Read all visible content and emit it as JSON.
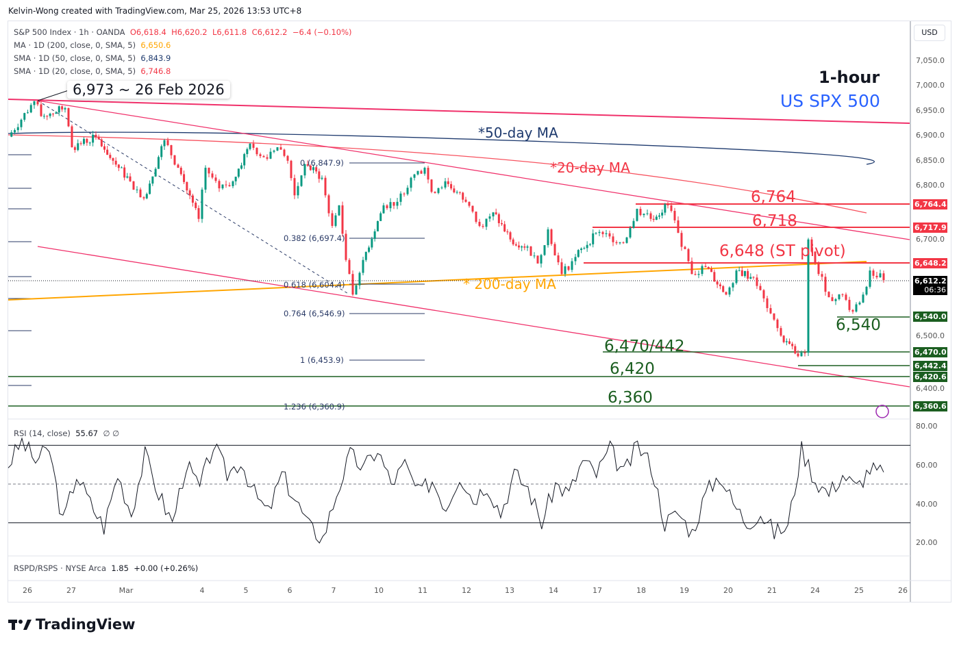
{
  "header": "Kelvin-Wong created with TradingView.com, Mar 25, 2026 13:53 UTC+8",
  "legend": {
    "symbol": "S&P 500 Index · 1h · OANDA",
    "o": "O6,618.4",
    "h": "H6,620.2",
    "l": "L6,611.8",
    "c": "C6,612.2",
    "chg": "−6.4 (−0.10%)",
    "ma200": "MA · 1D (200, close, 0, SMA, 5)",
    "ma200_val": "6,650.6",
    "sma50": "SMA · 1D (50, close, 0, SMA, 5)",
    "sma50_val": "6,843.9",
    "sma20": "SMA · 1D (20, close, 0, SMA, 5)",
    "sma20_val": "6,746.8"
  },
  "callout": "6,973 ~ 26 Feb 2026",
  "titles": {
    "timeframe": "1-hour",
    "instrument": "US SPX 500"
  },
  "annotations": {
    "ma50": "*50-day MA",
    "ma20": "*20-day MA",
    "ma200": "* 200-day MA",
    "r1": "6,764",
    "r2": "6,718",
    "pivot": "6,648 (ST pivot)",
    "s1": "6,540",
    "s2": "6,470/442",
    "s3": "6,420",
    "s4": "6,360"
  },
  "fib_levels": [
    "0 (6,847.9)",
    "0.382 (6,697.4)",
    "0.618 (6,604.4)",
    "0.764 (6,546.9)",
    "1 (6,453.9)",
    "1.236 (6,360.9)"
  ],
  "price_axis": {
    "currency": "USD",
    "ticks": [
      "7,050.0",
      "7,000.0",
      "6,950.0",
      "6,900.0",
      "6,850.0",
      "6,800.0",
      "6,700.0",
      "6,500.0",
      "6,400.0"
    ],
    "tags": [
      {
        "v": "6,764.4",
        "c": "#f23645"
      },
      {
        "v": "6,717.9",
        "c": "#f23645"
      },
      {
        "v": "6,648.2",
        "c": "#f23645"
      },
      {
        "v": "6,612.2",
        "c": "#000000",
        "sub": "06:36"
      },
      {
        "v": "6,540.0",
        "c": "#1b5e20"
      },
      {
        "v": "6,470.0",
        "c": "#1b5e20"
      },
      {
        "v": "6,442.4",
        "c": "#1b5e20"
      },
      {
        "v": "6,420.6",
        "c": "#1b5e20"
      },
      {
        "v": "6,360.6",
        "c": "#1b5e20"
      }
    ]
  },
  "rsi": {
    "legend": "RSI (14, close)",
    "value": "55.67",
    "extra": "∅ ∅",
    "ticks": [
      "80.00",
      "60.00",
      "40.00",
      "20.00"
    ],
    "upper": 70,
    "lower": 30,
    "mid": 50
  },
  "rspd": {
    "legend": "RSPD/RSPS · NYSE Arca",
    "value": "1.85",
    "chg": "+0.00 (+0.26%)"
  },
  "x_axis": [
    "26",
    "27",
    "Mar",
    "4",
    "5",
    "6",
    "7",
    "10",
    "11",
    "12",
    "13",
    "14",
    "17",
    "18",
    "19",
    "20",
    "21",
    "24",
    "25",
    "26"
  ],
  "footer": {
    "logo": "TradingView"
  },
  "colors": {
    "up": "#089981",
    "down": "#f23645",
    "ma20": "#f7525f",
    "ma50": "#1e3a6e",
    "ma200": "#ffa500",
    "channel": "#f0306a",
    "support": "#1b5e20",
    "blue": "#2962ff"
  },
  "chart_data": {
    "type": "candlestick",
    "interval": "1h",
    "ylim": [
      6340,
      7070
    ],
    "approx_close_path": [
      6898,
      6969,
      6939,
      6955,
      6877,
      6898,
      6850,
      6809,
      6775,
      6891,
      6836,
      6734,
      6836,
      6795,
      6809,
      6884,
      6857,
      6877,
      6850,
      6781,
      6843,
      6816,
      6720,
      6761,
      6652,
      6583,
      6652,
      6761,
      6768,
      6816,
      6836,
      6788,
      6809,
      6768,
      6720,
      6747,
      6693,
      6679,
      6645,
      6713,
      6624,
      6658,
      6706,
      6699,
      6686,
      6754,
      6734,
      6761,
      6706,
      6624,
      6638,
      6583,
      6631,
      6617,
      6556,
      6501,
      6460,
      6467,
      6693,
      6624,
      6570,
      6583,
      6549,
      6583,
      6631,
      6612
    ],
    "approx_rsi_path": [
      60,
      72,
      62,
      68,
      30,
      55,
      40,
      28,
      55,
      35,
      65,
      45,
      30,
      60,
      48,
      70,
      55,
      62,
      45,
      35,
      55,
      42,
      28,
      22,
      45,
      65,
      58,
      68,
      50,
      60,
      45,
      52,
      38,
      55,
      42,
      50,
      35,
      55,
      48,
      30,
      50,
      45,
      62,
      55,
      68,
      55,
      70,
      60,
      30,
      35,
      25,
      45,
      55,
      40,
      30,
      35,
      25,
      28,
      68,
      52,
      45,
      55,
      48,
      58,
      55
    ],
    "horizontal_levels": [
      6764.4,
      6717.9,
      6648.2,
      6540.0,
      6470.0,
      6442.4,
      6420.6,
      6360.6
    ]
  }
}
